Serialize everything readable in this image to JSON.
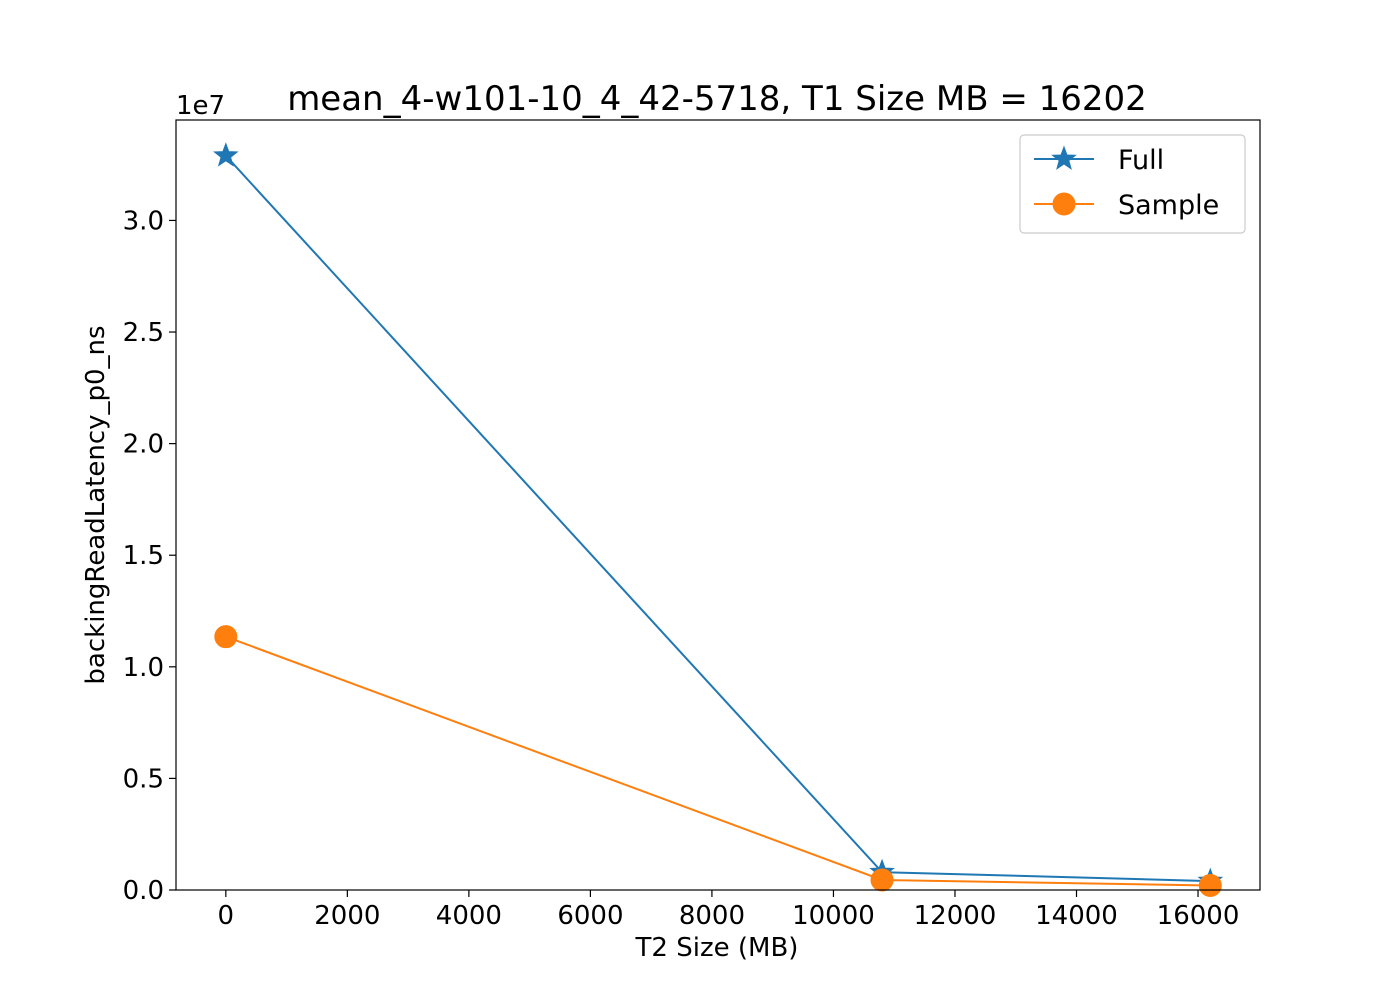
{
  "chart_data": {
    "type": "line",
    "title": "mean_4-w101-10_4_42-5718, T1 Size MB = 16202",
    "xlabel": "T2 Size (MB)",
    "ylabel": "backingReadLatency_p0_ns",
    "y_offset_label": "1e7",
    "xlim": [
      -820,
      17020
    ],
    "ylim": [
      0,
      34500000
    ],
    "x_ticks": [
      0,
      2000,
      4000,
      6000,
      8000,
      10000,
      12000,
      14000,
      16000
    ],
    "x_tick_labels": [
      "0",
      "2000",
      "4000",
      "6000",
      "8000",
      "10000",
      "12000",
      "14000",
      "16000"
    ],
    "y_ticks": [
      0,
      5000000,
      10000000,
      15000000,
      20000000,
      25000000,
      30000000
    ],
    "y_tick_labels": [
      "0.0",
      "0.5",
      "1.0",
      "1.5",
      "2.0",
      "2.5",
      "3.0"
    ],
    "grid": false,
    "legend_position": "top-right",
    "series": [
      {
        "name": "Full",
        "color": "#1f77b4",
        "marker": "star",
        "x": [
          0,
          10800,
          16202
        ],
        "y": [
          32900000,
          800000,
          400000
        ]
      },
      {
        "name": "Sample",
        "color": "#ff7f0e",
        "marker": "circle",
        "x": [
          0,
          10800,
          16202
        ],
        "y": [
          11350000,
          450000,
          200000
        ]
      }
    ]
  }
}
